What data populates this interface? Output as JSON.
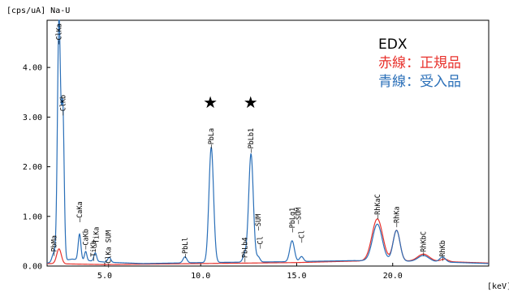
{
  "chart_data": {
    "type": "line",
    "ylabel": "[cps/uA] Na-U",
    "xlabel": "[keV]",
    "xlim": [
      2.0,
      25.0
    ],
    "ylim": [
      0.0,
      4.95
    ],
    "x_ticks": [
      {
        "v": 5.0,
        "label": "5.0"
      },
      {
        "v": 10.0,
        "label": "10.0"
      },
      {
        "v": 15.0,
        "label": "15.0"
      },
      {
        "v": 20.0,
        "label": "20.0"
      }
    ],
    "y_ticks": [
      {
        "v": 0.0,
        "label": "0.00"
      },
      {
        "v": 1.0,
        "label": "1.00"
      },
      {
        "v": 2.0,
        "label": "2.00"
      },
      {
        "v": 3.0,
        "label": "3.00"
      },
      {
        "v": 4.0,
        "label": "4.00"
      }
    ],
    "legend": {
      "title": "EDX",
      "title_color": "#000000",
      "entries": [
        {
          "label": "赤線：正規品",
          "color": "#e8322d"
        },
        {
          "label": "青線：受入品",
          "color": "#2a6fb8"
        }
      ]
    },
    "star_symbol": "★",
    "star_positions": [
      10.5,
      12.6
    ],
    "peak_labels": [
      {
        "text": "PbMa",
        "x": 2.35,
        "y": 0.62
      },
      {
        "text": "ClKa",
        "x": 2.62,
        "y": 5.05
      },
      {
        "text": "ClKb",
        "x": 2.82,
        "y": 3.45
      },
      {
        "text": "CaKa",
        "x": 3.69,
        "y": 1.3
      },
      {
        "text": "CaKb",
        "x": 4.01,
        "y": 0.75
      },
      {
        "text": "TiKb",
        "x": 4.42,
        "y": 0.52
      },
      {
        "text": "TiKa",
        "x": 4.55,
        "y": 0.79
      },
      {
        "text": "ClKa SUM",
        "x": 5.2,
        "y": 0.72
      },
      {
        "text": "PbLl",
        "x": 9.18,
        "y": 0.58
      },
      {
        "text": "PbLa",
        "x": 10.55,
        "y": 2.78
      },
      {
        "text": "PbLb4",
        "x": 12.3,
        "y": 0.58
      },
      {
        "text": "PbLb1",
        "x": 12.62,
        "y": 2.78
      },
      {
        "text": "SUM",
        "x": 13.0,
        "y": 1.05
      },
      {
        "text": "Cl",
        "x": 13.1,
        "y": 0.6
      },
      {
        "text": "PbLg1",
        "x": 14.76,
        "y": 1.18
      },
      {
        "text": "SUM",
        "x": 15.08,
        "y": 1.18
      },
      {
        "text": "Cl",
        "x": 15.25,
        "y": 0.72
      },
      {
        "text": "RhKaC",
        "x": 19.2,
        "y": 1.45
      },
      {
        "text": "RhKa",
        "x": 20.2,
        "y": 1.2
      },
      {
        "text": "RhKbC",
        "x": 21.6,
        "y": 0.7
      },
      {
        "text": "RhKb",
        "x": 22.6,
        "y": 0.52
      }
    ],
    "series": [
      {
        "name": "赤線：正規品",
        "color": "#e8322d",
        "baseline": [
          [
            2.0,
            0.05
          ],
          [
            5.0,
            0.03
          ],
          [
            10.0,
            0.05
          ],
          [
            15.0,
            0.07
          ],
          [
            18.0,
            0.1
          ],
          [
            22.0,
            0.1
          ],
          [
            25.0,
            0.06
          ]
        ],
        "peaks": [
          {
            "x": 19.2,
            "h": 0.85,
            "w": 0.28
          },
          {
            "x": 20.2,
            "h": 0.62,
            "w": 0.18
          },
          {
            "x": 21.6,
            "h": 0.14,
            "w": 0.3
          },
          {
            "x": 22.7,
            "h": 0.05,
            "w": 0.18
          },
          {
            "x": 2.62,
            "h": 0.3,
            "w": 0.12
          }
        ]
      },
      {
        "name": "青線：受入品",
        "color": "#2a6fb8",
        "baseline": [
          [
            2.0,
            0.06
          ],
          [
            3.3,
            0.14
          ],
          [
            5.0,
            0.08
          ],
          [
            7.0,
            0.05
          ],
          [
            10.0,
            0.07
          ],
          [
            15.0,
            0.09
          ],
          [
            18.0,
            0.11
          ],
          [
            22.0,
            0.09
          ],
          [
            25.0,
            0.05
          ]
        ],
        "peaks": [
          {
            "x": 2.35,
            "h": 0.18,
            "w": 0.09
          },
          {
            "x": 2.62,
            "h": 4.9,
            "w": 0.08
          },
          {
            "x": 2.82,
            "h": 3.0,
            "w": 0.07
          },
          {
            "x": 3.69,
            "h": 0.52,
            "w": 0.07
          },
          {
            "x": 4.01,
            "h": 0.18,
            "w": 0.06
          },
          {
            "x": 4.51,
            "h": 0.17,
            "w": 0.07
          },
          {
            "x": 5.24,
            "h": 0.1,
            "w": 0.08
          },
          {
            "x": 9.18,
            "h": 0.12,
            "w": 0.1
          },
          {
            "x": 10.55,
            "h": 2.32,
            "w": 0.12
          },
          {
            "x": 12.3,
            "h": 0.15,
            "w": 0.1
          },
          {
            "x": 12.62,
            "h": 2.18,
            "w": 0.12
          },
          {
            "x": 13.0,
            "h": 0.1,
            "w": 0.09
          },
          {
            "x": 14.76,
            "h": 0.42,
            "w": 0.12
          },
          {
            "x": 15.25,
            "h": 0.1,
            "w": 0.1
          },
          {
            "x": 19.2,
            "h": 0.74,
            "w": 0.25
          },
          {
            "x": 20.2,
            "h": 0.62,
            "w": 0.18
          },
          {
            "x": 21.6,
            "h": 0.12,
            "w": 0.28
          },
          {
            "x": 22.6,
            "h": 0.1,
            "w": 0.15
          }
        ]
      }
    ]
  }
}
